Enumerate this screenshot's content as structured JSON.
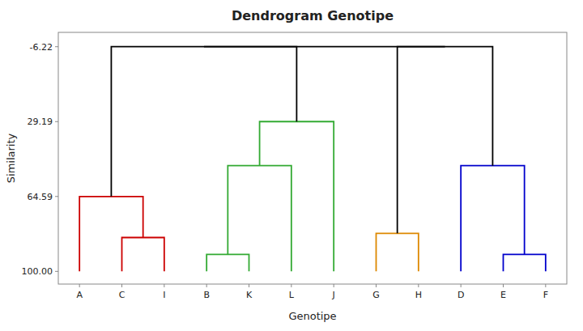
{
  "chart_data": {
    "type": "dendrogram",
    "title": "Dendrogram Genotipe",
    "x_label": "Genotipe",
    "y_label": "Similarity",
    "categories": [
      "A",
      "C",
      "I",
      "B",
      "K",
      "L",
      "J",
      "G",
      "H",
      "D",
      "E",
      "F"
    ],
    "leaf_height": 100,
    "links": [
      {
        "left": [
          "C"
        ],
        "right": [
          "I"
        ],
        "height": 84.0,
        "color": "#cc0000"
      },
      {
        "left": [
          "A"
        ],
        "right": [
          "C",
          "I"
        ],
        "height": 64.59,
        "color": "#cc0000"
      },
      {
        "left": [
          "B"
        ],
        "right": [
          "K"
        ],
        "height": 92.0,
        "color": "#33aa33"
      },
      {
        "left": [
          "B",
          "K"
        ],
        "right": [
          "L"
        ],
        "height": 50.0,
        "color": "#33aa33"
      },
      {
        "left": [
          "B",
          "K",
          "L"
        ],
        "right": [
          "J"
        ],
        "height": 29.19,
        "color": "#33aa33"
      },
      {
        "left": [
          "G"
        ],
        "right": [
          "H"
        ],
        "height": 82.0,
        "color": "#dd8800"
      },
      {
        "left": [
          "E"
        ],
        "right": [
          "F"
        ],
        "height": 92.0,
        "color": "#0000cc"
      },
      {
        "left": [
          "D"
        ],
        "right": [
          "E",
          "F"
        ],
        "height": 50.0,
        "color": "#0000cc"
      },
      {
        "left": [
          "A",
          "C",
          "I"
        ],
        "right": [
          "B",
          "K",
          "L",
          "J"
        ],
        "height": -6.22,
        "color": "#000000"
      },
      {
        "left": [
          "G",
          "H"
        ],
        "right": [
          "D",
          "E",
          "F"
        ],
        "height": -6.22,
        "color": "#000000"
      },
      {
        "left": [
          "A",
          "C",
          "I",
          "B",
          "K",
          "L",
          "J"
        ],
        "right": [
          "G",
          "H",
          "D",
          "E",
          "F"
        ],
        "height": -6.22,
        "color": "#000000"
      }
    ],
    "ylim": [
      106,
      -13
    ],
    "yticks": [
      {
        "value": 100.0,
        "label": "100.00"
      },
      64.59,
      29.19,
      -6.22
    ],
    "grid": false
  }
}
